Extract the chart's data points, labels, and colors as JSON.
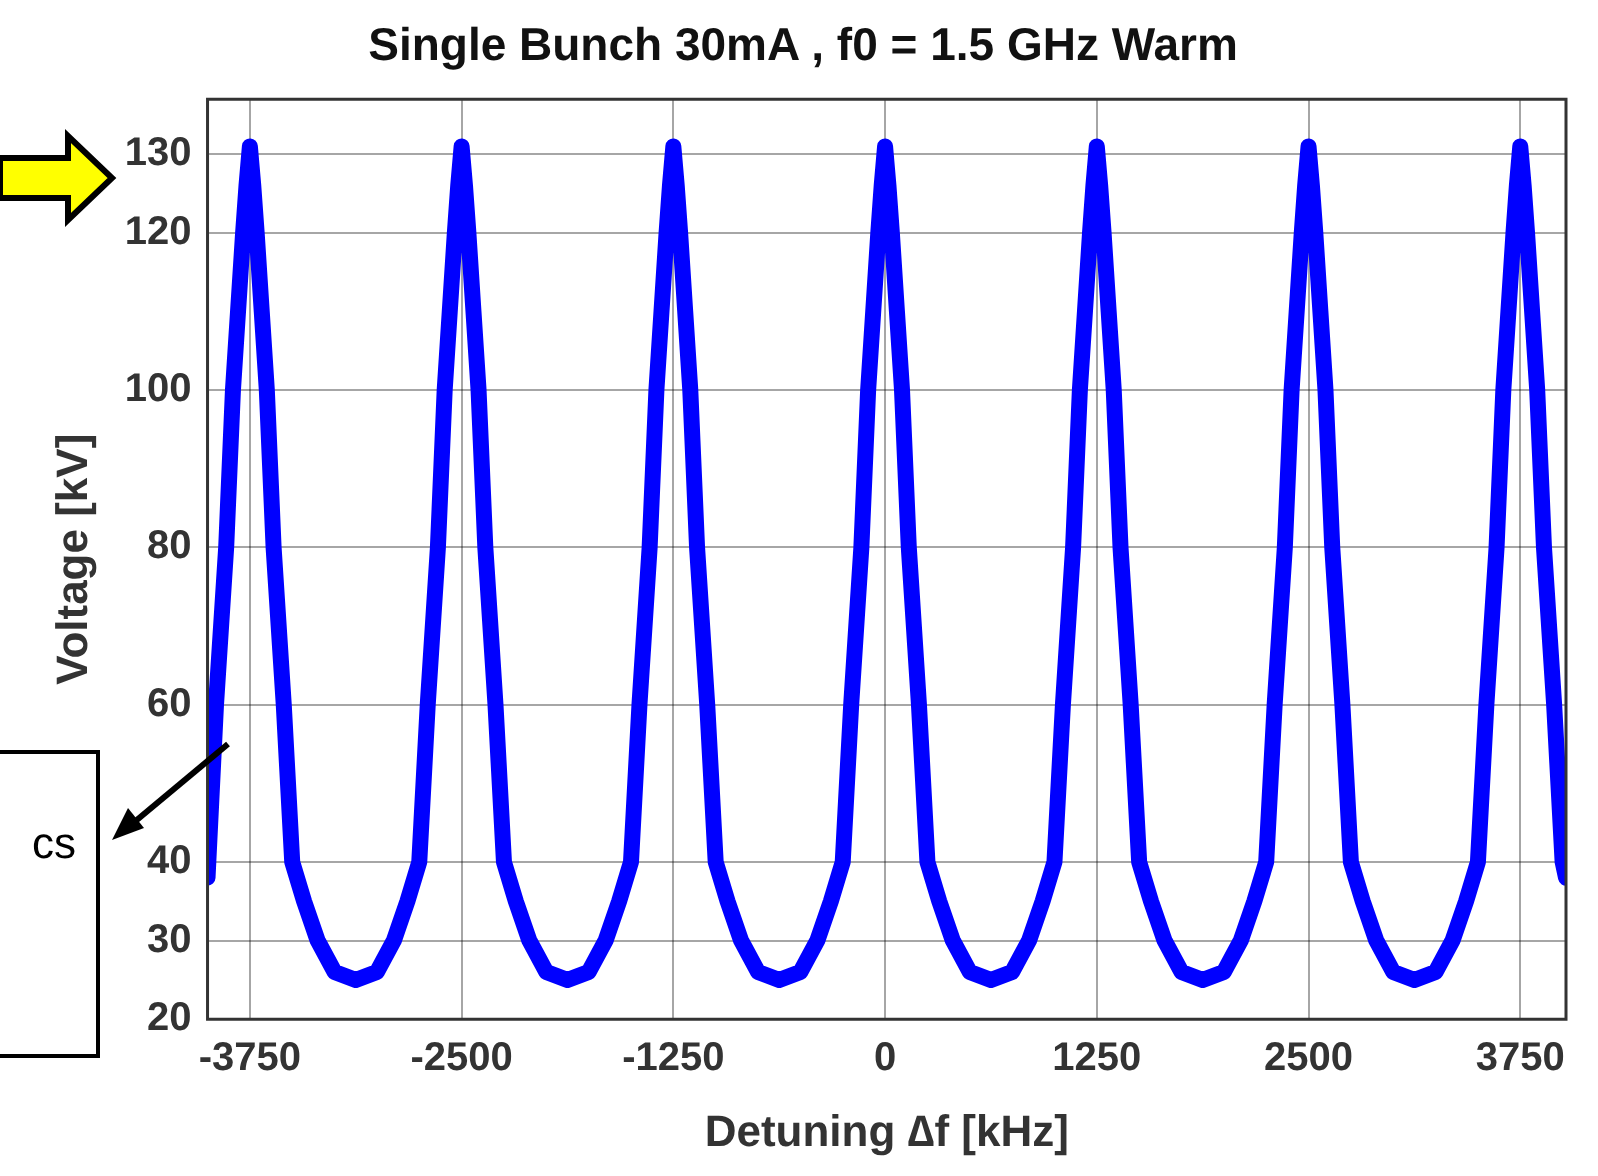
{
  "chart_data": {
    "type": "line",
    "title": "Single Bunch 30mA , f0 = 1.5 GHz Warm",
    "xlabel": "Detuning ∆f [kHz]",
    "ylabel": "Voltage [kV]",
    "color": "#0000ff",
    "grid": true,
    "xlim": [
      -4000,
      4020
    ],
    "ylim": [
      20,
      137
    ],
    "xticks": [
      -3750,
      -2500,
      -1250,
      0,
      1250,
      2500,
      3750
    ],
    "yticks": [
      20,
      30,
      40,
      60,
      80,
      100,
      120,
      130
    ],
    "annotations": [
      "cs"
    ],
    "x": [
      -4000,
      -3950,
      -3890,
      -3850,
      -3820,
      -3790,
      -3770,
      -3750,
      -3730,
      -3710,
      -3680,
      -3650,
      -3610,
      -3550,
      -3500,
      -3430,
      -3350,
      -3250,
      -3125,
      -3000,
      -2900,
      -2820,
      -2750,
      -2700,
      -2640,
      -2600,
      -2570,
      -2540,
      -2520,
      -2500,
      -2480,
      -2460,
      -2430,
      -2400,
      -2360,
      -2300,
      -2250,
      -2180,
      -2100,
      -2000,
      -1875,
      -1750,
      -1650,
      -1570,
      -1500,
      -1450,
      -1390,
      -1350,
      -1320,
      -1290,
      -1270,
      -1250,
      -1230,
      -1210,
      -1180,
      -1150,
      -1110,
      -1050,
      -1000,
      -930,
      -850,
      -750,
      -625,
      -500,
      -400,
      -320,
      -250,
      -200,
      -140,
      -100,
      -70,
      -40,
      -20,
      0,
      20,
      40,
      70,
      100,
      140,
      200,
      250,
      320,
      400,
      500,
      625,
      750,
      850,
      930,
      1000,
      1050,
      1110,
      1150,
      1180,
      1210,
      1230,
      1250,
      1270,
      1290,
      1320,
      1350,
      1390,
      1450,
      1500,
      1570,
      1650,
      1750,
      1875,
      2000,
      2100,
      2180,
      2250,
      2300,
      2360,
      2400,
      2430,
      2460,
      2480,
      2500,
      2520,
      2540,
      2570,
      2600,
      2640,
      2700,
      2750,
      2820,
      2900,
      3000,
      3125,
      3250,
      3350,
      3430,
      3500,
      3550,
      3610,
      3650,
      3680,
      3710,
      3730,
      3750,
      3770,
      3790,
      3820,
      3850,
      3890,
      3950,
      4000,
      4020
    ],
    "values": [
      38,
      60,
      80,
      100,
      110,
      120,
      126,
      131,
      126,
      120,
      110,
      100,
      80,
      60,
      40,
      35,
      30,
      26,
      25,
      26,
      30,
      35,
      40,
      60,
      80,
      100,
      110,
      120,
      126,
      131,
      126,
      120,
      110,
      100,
      80,
      60,
      40,
      35,
      30,
      26,
      25,
      26,
      30,
      35,
      40,
      60,
      80,
      100,
      110,
      120,
      126,
      131,
      126,
      120,
      110,
      100,
      80,
      60,
      40,
      35,
      30,
      26,
      25,
      26,
      30,
      35,
      40,
      60,
      80,
      100,
      110,
      120,
      126,
      131,
      126,
      120,
      110,
      100,
      80,
      60,
      40,
      35,
      30,
      26,
      25,
      26,
      30,
      35,
      40,
      60,
      80,
      100,
      110,
      120,
      126,
      131,
      126,
      120,
      110,
      100,
      80,
      60,
      40,
      35,
      30,
      26,
      25,
      26,
      30,
      35,
      40,
      60,
      80,
      100,
      110,
      120,
      126,
      131,
      126,
      120,
      110,
      100,
      80,
      60,
      40,
      35,
      30,
      26,
      25,
      26,
      30,
      35,
      40,
      60,
      80,
      100,
      110,
      120,
      126,
      131,
      126,
      120,
      110,
      100,
      80,
      60,
      40,
      38
    ]
  }
}
